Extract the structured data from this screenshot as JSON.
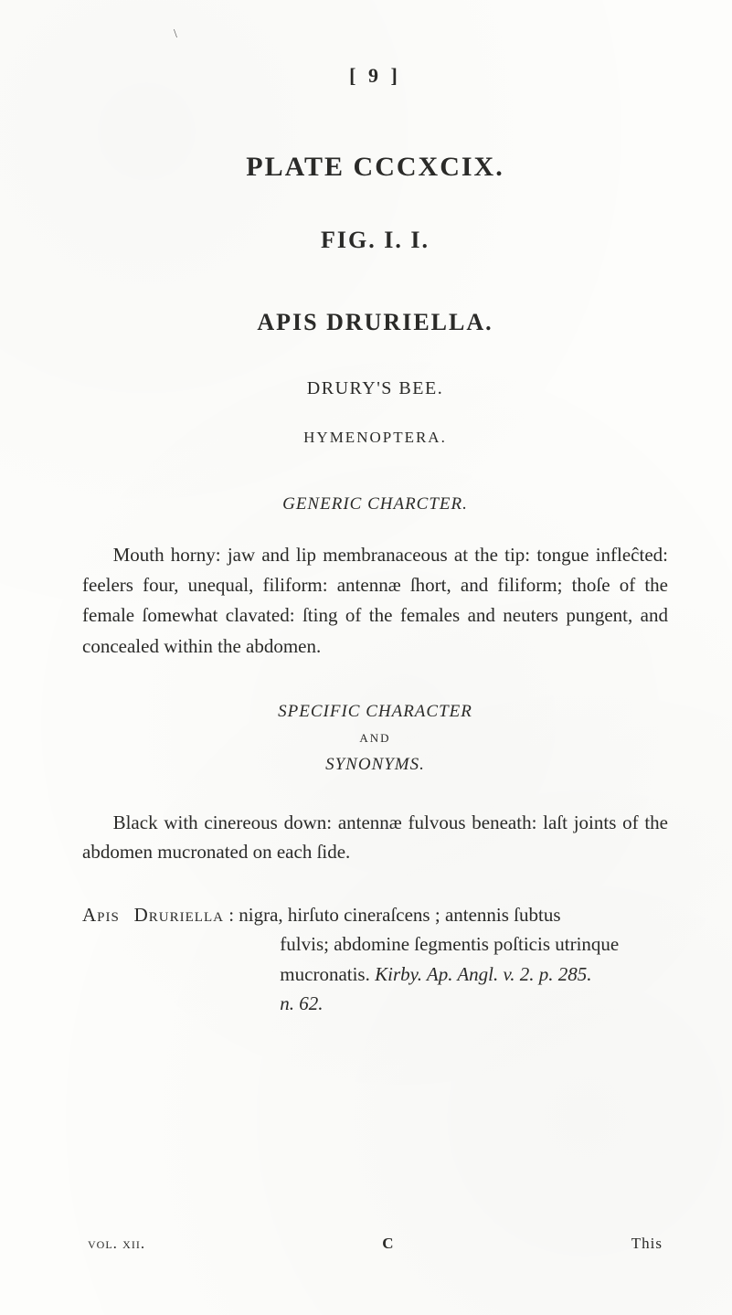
{
  "topmark": "\\",
  "page_number": "[ 9 ]",
  "plate_line": "PLATE  CCCXCIX.",
  "fig_line": "FIG.  I.  I.",
  "species_line": "APIS  DRURIELLA.",
  "common_name": "DRURY'S BEE.",
  "order_line": "HYMENOPTERA.",
  "generic_head": "GENERIC CHARCTER.",
  "generic_text": "Mouth horny: jaw and lip membranaceous at the tip: tongue infleĉted: feelers four, unequal, filiform: antennæ ſhort, and filiform; thoſe of the female ſomewhat clavated: ſting of the females and neuters pungent, and concealed within the abdomen.",
  "specific_head": "SPECIFIC CHARACTER",
  "and": "AND",
  "synonyms_head": "SYNONYMS.",
  "specific_text": "Black with cinereous down: antennæ fulvous beneath: laſt joints of the abdomen mucronated on each ſide.",
  "entry": {
    "lead_label": "Apis",
    "lead_name": "Druriella",
    "line1_rest": ": nigra, hirſuto cineraſcens ; antennis ſubtus",
    "line2": "fulvis; abdomine ſegmentis poſticis utrinque",
    "line3_a": "mucronatis. ",
    "line3_ital": "Kirby. Ap. Angl. v. 2. p. 285.",
    "line4_ital": "n. 62."
  },
  "footer": {
    "left": "vol. xii.",
    "center": "C",
    "right": "This"
  }
}
